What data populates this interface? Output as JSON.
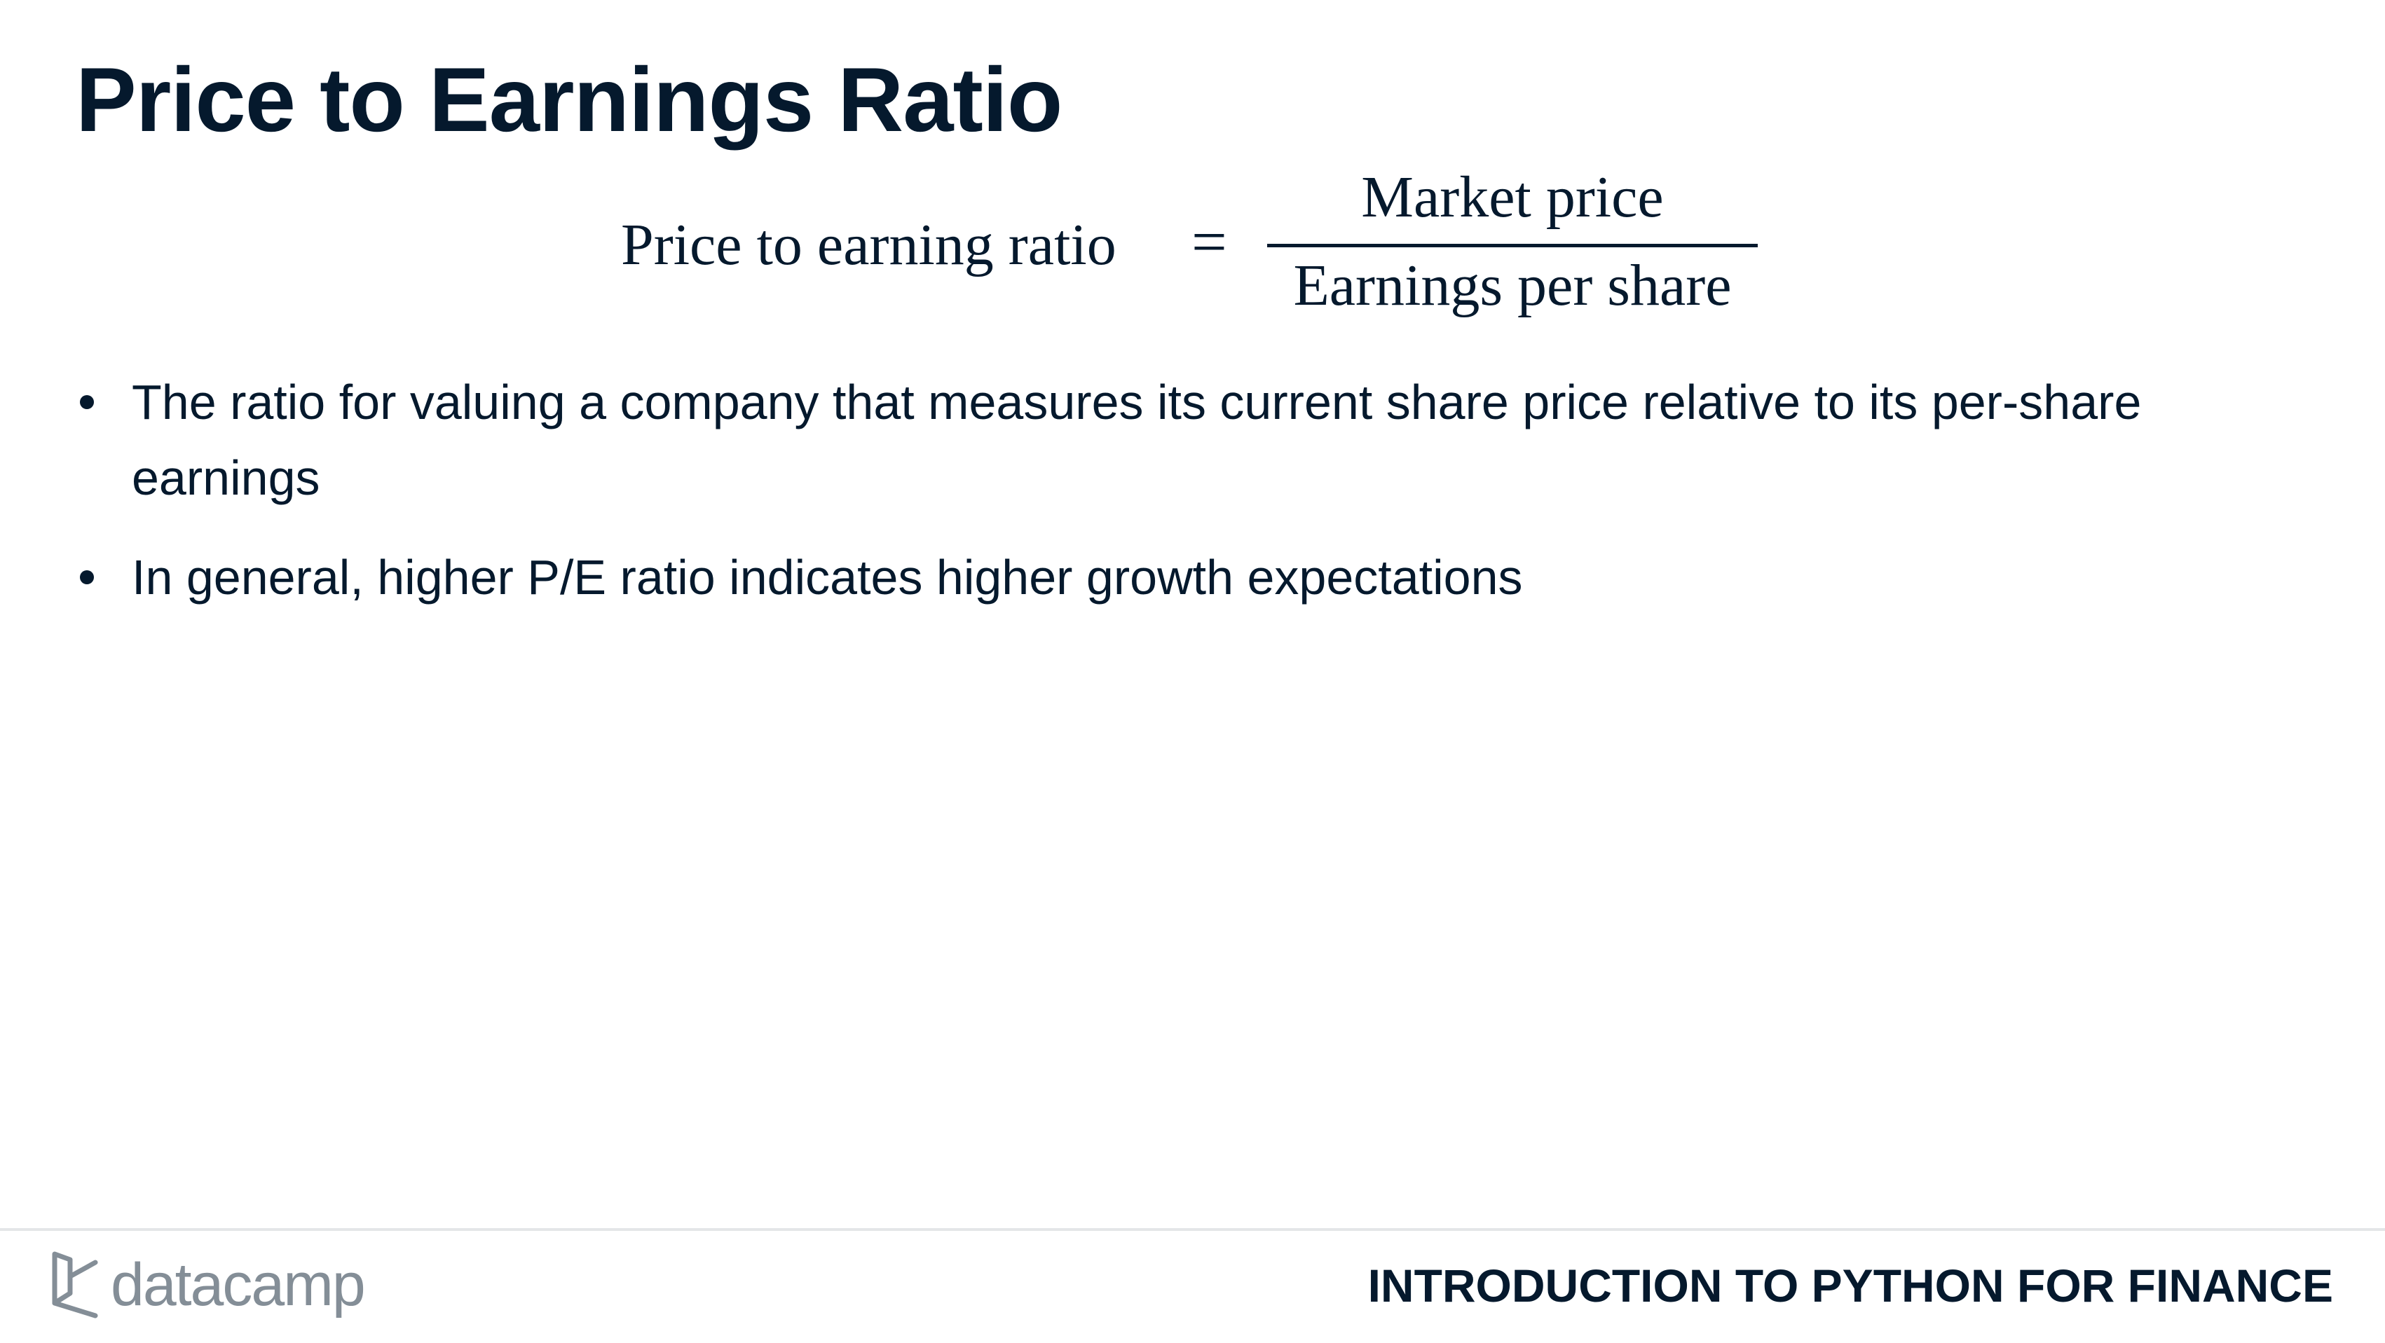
{
  "slide": {
    "title": "Price to Earnings Ratio"
  },
  "formula": {
    "lhs": "Price to earning ratio",
    "equals": "=",
    "numerator": "Market price",
    "denominator": "Earnings per share"
  },
  "bullets": [
    {
      "text": "The ratio for valuing a company that measures its current share price relative to its per-share earnings"
    },
    {
      "text": "In general, higher P/E ratio indicates higher growth expectations"
    }
  ],
  "footer": {
    "logo_icon": "datacamp-logo-icon",
    "logo_text": "datacamp",
    "course_name": "INTRODUCTION TO PYTHON FOR FINANCE"
  },
  "colors": {
    "text": "#05192d",
    "logo": "#848e97",
    "divider": "#e4e6e8",
    "background": "#ffffff"
  }
}
